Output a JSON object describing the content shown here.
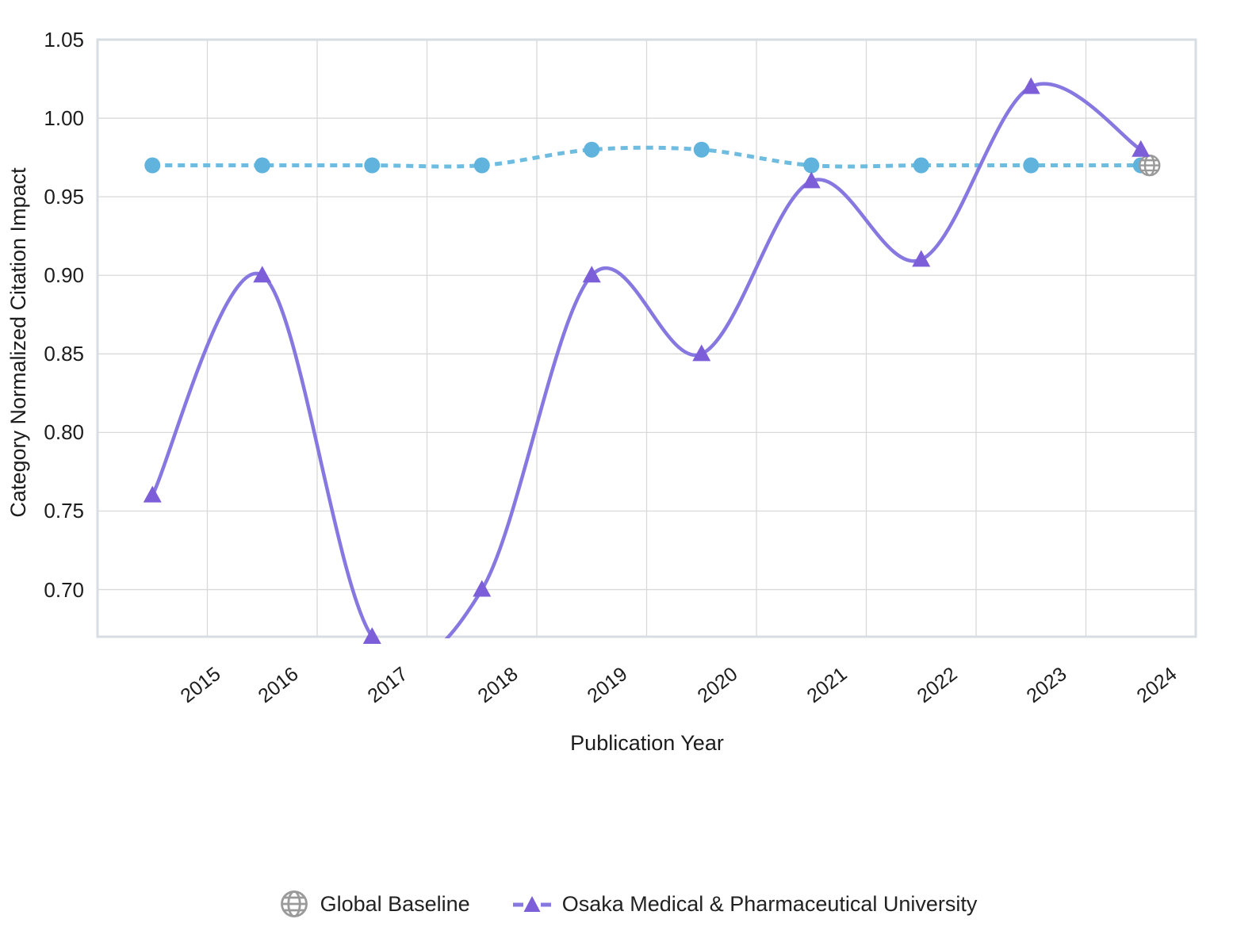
{
  "chart_data": {
    "type": "line",
    "title": "",
    "xlabel": "Publication Year",
    "ylabel": "Category Normalized Citation Impact",
    "categories": [
      "2015",
      "2016",
      "2017",
      "2018",
      "2019",
      "2020",
      "2021",
      "2022",
      "2023",
      "2024"
    ],
    "series": [
      {
        "name": "Global Baseline",
        "values": [
          0.97,
          0.97,
          0.97,
          0.97,
          0.98,
          0.98,
          0.97,
          0.97,
          0.97,
          0.97
        ],
        "line_style": "dashed",
        "marker": "circle",
        "end_marker": "globe",
        "color": "#5fb3dc",
        "line_color": "#6ebde1"
      },
      {
        "name": "Osaka Medical & Pharmaceutical University",
        "values": [
          0.76,
          0.9,
          0.67,
          0.7,
          0.9,
          0.85,
          0.96,
          0.91,
          1.02,
          0.98
        ],
        "line_style": "solid",
        "marker": "triangle",
        "color": "#7c5ed8",
        "line_color": "#8678e0"
      }
    ],
    "y_ticks": [
      "1.05",
      "1.00",
      "0.95",
      "0.90",
      "0.85",
      "0.80",
      "0.75",
      "0.70"
    ],
    "ylim": [
      0.67,
      1.05
    ],
    "grid": true,
    "legend_position": "bottom"
  },
  "colors": {
    "grid": "#d9d9d9",
    "plot_border": "#d7dde3",
    "text": "#1c1c1c",
    "globe_gray": "#999999"
  }
}
